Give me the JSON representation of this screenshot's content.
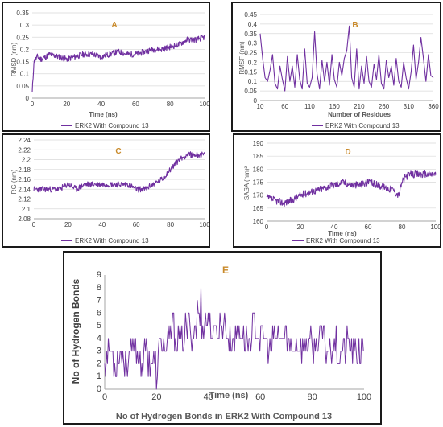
{
  "colors": {
    "series": "#7030a0",
    "letter": "#c98a2a",
    "axis": "#a6a6a6",
    "grid": "#d9d9d9",
    "text": "#404040",
    "label": "#595959"
  },
  "chart_data": [
    {
      "panel": "A",
      "type": "line",
      "xlabel": "Time (ns)",
      "ylabel": "RMSD (nm)",
      "xlim": [
        0,
        100
      ],
      "ylim": [
        0,
        0.35
      ],
      "xticks": [
        0,
        20,
        40,
        60,
        80,
        100
      ],
      "yticks": [
        0,
        0.05,
        0.1,
        0.15,
        0.2,
        0.25,
        0.3,
        0.35
      ],
      "ytick_labels": [
        "0",
        "0.05",
        "0.1",
        "0.15",
        "0.2",
        "0.25",
        "0.3",
        "0.35"
      ],
      "grid": true,
      "legend": "bottom",
      "series": [
        {
          "name": "ERK2 With Compound 13",
          "x": [
            0,
            1,
            3,
            5,
            8,
            10,
            15,
            20,
            25,
            30,
            35,
            40,
            45,
            50,
            55,
            60,
            65,
            70,
            75,
            80,
            85,
            90,
            95,
            100
          ],
          "y": [
            0.02,
            0.15,
            0.17,
            0.16,
            0.17,
            0.18,
            0.17,
            0.16,
            0.17,
            0.18,
            0.18,
            0.17,
            0.18,
            0.19,
            0.18,
            0.18,
            0.19,
            0.2,
            0.2,
            0.21,
            0.22,
            0.24,
            0.24,
            0.25
          ]
        }
      ]
    },
    {
      "panel": "B",
      "type": "line",
      "xlabel": "Number of Residues",
      "ylabel": "RMSF (nm)",
      "xlim": [
        10,
        360
      ],
      "ylim": [
        0,
        0.45
      ],
      "xticks": [
        10,
        60,
        110,
        160,
        210,
        260,
        310,
        360
      ],
      "yticks": [
        0,
        0.05,
        0.1,
        0.15,
        0.2,
        0.25,
        0.3,
        0.35,
        0.4,
        0.45
      ],
      "ytick_labels": [
        "0",
        "0.05",
        "0.1",
        "0.15",
        "0.2",
        "0.25",
        "0.3",
        "0.35",
        "0.4",
        "0.45"
      ],
      "grid": true,
      "legend": "bottom",
      "series": [
        {
          "name": "ERK2 With Compound 13",
          "x": [
            10,
            15,
            20,
            25,
            30,
            35,
            40,
            45,
            50,
            55,
            60,
            65,
            70,
            75,
            80,
            85,
            90,
            95,
            100,
            105,
            110,
            115,
            120,
            125,
            130,
            135,
            140,
            145,
            150,
            155,
            160,
            165,
            170,
            175,
            180,
            185,
            190,
            195,
            200,
            205,
            210,
            215,
            220,
            225,
            230,
            235,
            240,
            245,
            250,
            255,
            260,
            265,
            270,
            275,
            280,
            285,
            290,
            295,
            300,
            305,
            310,
            315,
            320,
            325,
            330,
            335,
            340,
            345,
            350,
            355,
            360
          ],
          "y": [
            0.35,
            0.22,
            0.12,
            0.1,
            0.16,
            0.24,
            0.09,
            0.06,
            0.18,
            0.11,
            0.05,
            0.23,
            0.1,
            0.18,
            0.07,
            0.24,
            0.11,
            0.06,
            0.27,
            0.09,
            0.07,
            0.12,
            0.36,
            0.14,
            0.06,
            0.21,
            0.1,
            0.2,
            0.08,
            0.24,
            0.11,
            0.07,
            0.2,
            0.13,
            0.22,
            0.26,
            0.39,
            0.12,
            0.07,
            0.27,
            0.06,
            0.18,
            0.09,
            0.23,
            0.1,
            0.07,
            0.19,
            0.11,
            0.24,
            0.09,
            0.06,
            0.21,
            0.12,
            0.18,
            0.08,
            0.22,
            0.1,
            0.07,
            0.2,
            0.12,
            0.06,
            0.15,
            0.29,
            0.11,
            0.2,
            0.33,
            0.22,
            0.1,
            0.24,
            0.13,
            0.12
          ]
        }
      ]
    },
    {
      "panel": "C",
      "type": "line",
      "xlabel": "",
      "ylabel": "RG (nm)",
      "xlim": [
        0,
        100
      ],
      "ylim": [
        2.08,
        2.24
      ],
      "xticks": [
        0,
        20,
        40,
        60,
        80,
        100
      ],
      "yticks": [
        2.08,
        2.1,
        2.12,
        2.14,
        2.16,
        2.18,
        2.2,
        2.22,
        2.24
      ],
      "ytick_labels": [
        "2.08",
        "2.1",
        "2.12",
        "2.14",
        "2.16",
        "2.18",
        "2.2",
        "2.22",
        "2.24"
      ],
      "grid": true,
      "legend": "bottom",
      "series": [
        {
          "name": "ERK2 With Compound 13",
          "x": [
            0,
            5,
            10,
            15,
            20,
            25,
            30,
            35,
            40,
            45,
            50,
            55,
            60,
            65,
            70,
            75,
            80,
            85,
            90,
            95,
            100
          ],
          "y": [
            2.14,
            2.14,
            2.14,
            2.14,
            2.15,
            2.14,
            2.15,
            2.15,
            2.15,
            2.15,
            2.15,
            2.15,
            2.14,
            2.14,
            2.15,
            2.16,
            2.18,
            2.2,
            2.21,
            2.21,
            2.21
          ]
        }
      ]
    },
    {
      "panel": "D",
      "type": "line",
      "xlabel": "Time (ns)",
      "ylabel": "SASA (nm)²",
      "xlim": [
        0,
        100
      ],
      "ylim": [
        160,
        190
      ],
      "xticks": [
        0,
        20,
        40,
        60,
        80,
        100
      ],
      "yticks": [
        160,
        165,
        170,
        175,
        180,
        185,
        190
      ],
      "ytick_labels": [
        "160",
        "165",
        "170",
        "175",
        "180",
        "185",
        "190"
      ],
      "grid": true,
      "legend": "bottom",
      "series": [
        {
          "name": "ERK2 With Compound 13",
          "x": [
            0,
            5,
            10,
            15,
            20,
            25,
            30,
            35,
            40,
            45,
            50,
            55,
            60,
            65,
            70,
            75,
            78,
            80,
            82,
            85,
            90,
            95,
            100
          ],
          "y": [
            169,
            168,
            167,
            168,
            170,
            171,
            172,
            173,
            174,
            175,
            174,
            174,
            175,
            174,
            173,
            172,
            170,
            175,
            177,
            178,
            178,
            178,
            178
          ]
        }
      ]
    },
    {
      "panel": "E",
      "type": "line",
      "title": "No of Hydrogen Bonds in ERK2 With Compound 13",
      "xlabel": "Time (ns)",
      "ylabel": "No of Hydrogen Bonds",
      "xlim": [
        0,
        100
      ],
      "ylim": [
        0,
        9
      ],
      "xticks": [
        0,
        20,
        40,
        60,
        80,
        100
      ],
      "yticks": [
        0,
        1,
        2,
        3,
        4,
        5,
        6,
        7,
        8,
        9
      ],
      "ytick_labels": [
        "0",
        "1",
        "2",
        "3",
        "4",
        "5",
        "6",
        "7",
        "8",
        "9"
      ],
      "grid": false,
      "series": [
        {
          "x": [
            0,
            2,
            4,
            6,
            8,
            10,
            12,
            14,
            16,
            18,
            20,
            22,
            24,
            26,
            28,
            30,
            32,
            34,
            36,
            38,
            40,
            42,
            44,
            46,
            48,
            50,
            52,
            54,
            56,
            58,
            60,
            62,
            64,
            66,
            68,
            70,
            72,
            74,
            76,
            78,
            80,
            82,
            84,
            86,
            88,
            90,
            92,
            94,
            96,
            98,
            100
          ],
          "y": [
            2,
            3,
            2,
            3,
            2,
            3,
            3,
            2,
            3,
            2,
            2,
            4,
            3,
            5,
            4,
            4,
            5,
            4,
            6,
            5,
            6,
            4,
            5,
            5,
            4,
            4,
            5,
            4,
            4,
            5,
            4,
            4,
            3,
            4,
            4,
            4,
            3,
            4,
            3,
            4,
            3,
            4,
            4,
            3,
            4,
            3,
            3,
            4,
            3,
            3,
            3
          ]
        }
      ]
    }
  ]
}
